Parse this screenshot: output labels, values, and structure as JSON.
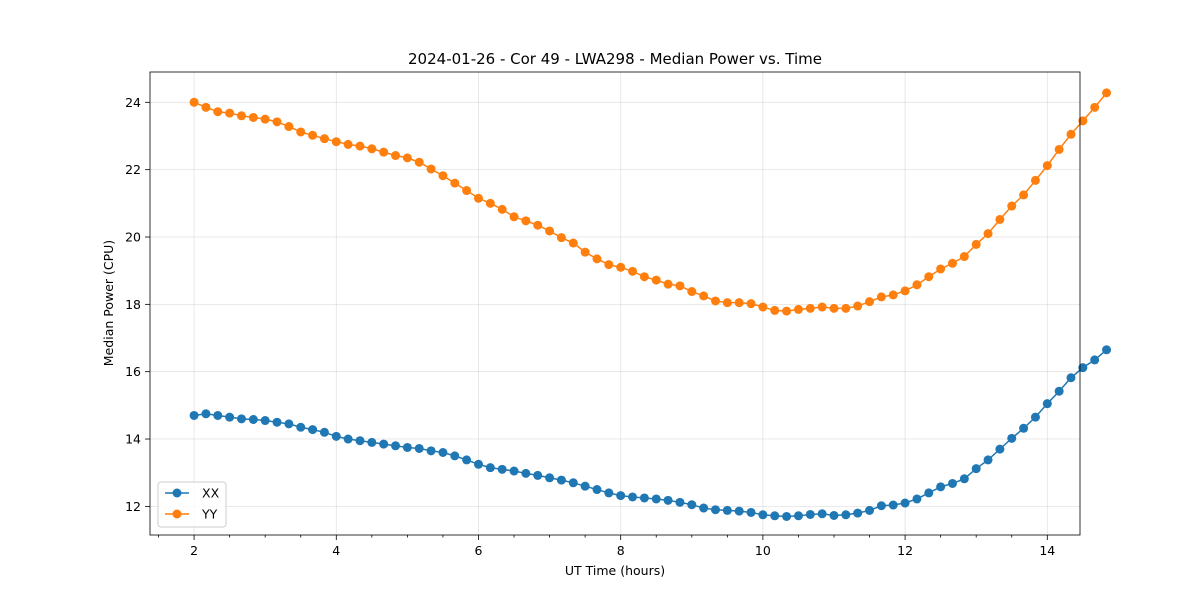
{
  "chart_data": {
    "type": "line",
    "title": "2024-01-26 - Cor 49 - LWA298 - Median Power vs. Time",
    "xlabel": "UT Time (hours)",
    "ylabel": "Median Power (CPU)",
    "xlim": [
      1.38,
      14.46
    ],
    "ylim": [
      11.15,
      24.9
    ],
    "xticks": [
      2,
      4,
      6,
      8,
      10,
      12,
      14
    ],
    "xtick_labels": [
      "2",
      "4",
      "6",
      "8",
      "10",
      "12",
      "14"
    ],
    "yticks": [
      12,
      14,
      16,
      18,
      20,
      22,
      24
    ],
    "ytick_labels": [
      "12",
      "14",
      "16",
      "18",
      "20",
      "22",
      "24"
    ],
    "grid": true,
    "legend_position": "lower-left",
    "x": [
      2.0,
      2.1667,
      2.3333,
      2.5,
      2.6667,
      2.8333,
      3.0,
      3.1667,
      3.3333,
      3.5,
      3.6667,
      3.8333,
      4.0,
      4.1667,
      4.3333,
      4.5,
      4.6667,
      4.8333,
      5.0,
      5.1667,
      5.3333,
      5.5,
      5.6667,
      5.8333,
      6.0,
      6.1667,
      6.3333,
      6.5,
      6.6667,
      6.8333,
      7.0,
      7.1667,
      7.3333,
      7.5,
      7.6667,
      7.8333,
      8.0,
      8.1667,
      8.3333,
      8.5,
      8.6667,
      8.8333,
      9.0,
      9.1667,
      9.3333,
      9.5,
      9.6667,
      9.8333,
      10.0,
      10.1667,
      10.3333,
      10.5,
      10.6667,
      10.8333,
      11.0,
      11.1667,
      11.3333,
      11.5,
      11.6667,
      11.8333,
      12.0,
      12.1667,
      12.3333,
      12.5,
      12.6667,
      12.8333,
      13.0,
      13.1667,
      13.3333,
      13.5,
      13.6667,
      13.8333,
      14.0,
      14.1667,
      14.3333,
      14.5,
      14.6667,
      14.8333
    ],
    "series": [
      {
        "name": "XX",
        "color": "#1f77b4",
        "values": [
          14.7,
          14.75,
          14.7,
          14.65,
          14.6,
          14.58,
          14.55,
          14.5,
          14.45,
          14.35,
          14.28,
          14.2,
          14.08,
          14.0,
          13.95,
          13.9,
          13.85,
          13.8,
          13.75,
          13.72,
          13.65,
          13.6,
          13.5,
          13.38,
          13.25,
          13.15,
          13.1,
          13.05,
          12.98,
          12.92,
          12.85,
          12.78,
          12.7,
          12.6,
          12.5,
          12.4,
          12.32,
          12.28,
          12.25,
          12.22,
          12.18,
          12.12,
          12.05,
          11.95,
          11.9,
          11.88,
          11.86,
          11.82,
          11.75,
          11.72,
          11.7,
          11.72,
          11.76,
          11.78,
          11.73,
          11.75,
          11.8,
          11.88,
          12.02,
          12.04,
          12.1,
          12.22,
          12.4,
          12.58,
          12.68,
          12.82,
          13.12,
          13.38,
          13.7,
          14.02,
          14.32,
          14.65,
          15.05,
          15.42,
          15.82,
          16.12,
          16.35,
          16.65
        ]
      },
      {
        "name": "YY",
        "color": "#ff7f0e",
        "values": [
          24.0,
          23.85,
          23.72,
          23.68,
          23.6,
          23.55,
          23.5,
          23.42,
          23.28,
          23.12,
          23.02,
          22.92,
          22.83,
          22.75,
          22.7,
          22.62,
          22.52,
          22.42,
          22.35,
          22.22,
          22.02,
          21.82,
          21.6,
          21.38,
          21.15,
          21.0,
          20.82,
          20.6,
          20.48,
          20.35,
          20.18,
          19.98,
          19.82,
          19.55,
          19.35,
          19.18,
          19.1,
          18.98,
          18.82,
          18.72,
          18.6,
          18.55,
          18.38,
          18.25,
          18.1,
          18.05,
          18.05,
          18.02,
          17.92,
          17.82,
          17.8,
          17.85,
          17.88,
          17.92,
          17.88,
          17.88,
          17.95,
          18.08,
          18.22,
          18.28,
          18.4,
          18.58,
          18.82,
          19.05,
          19.22,
          19.42,
          19.78,
          20.1,
          20.52,
          20.92,
          21.25,
          21.68,
          22.12,
          22.6,
          23.05,
          23.45,
          23.85,
          24.28
        ]
      }
    ]
  }
}
